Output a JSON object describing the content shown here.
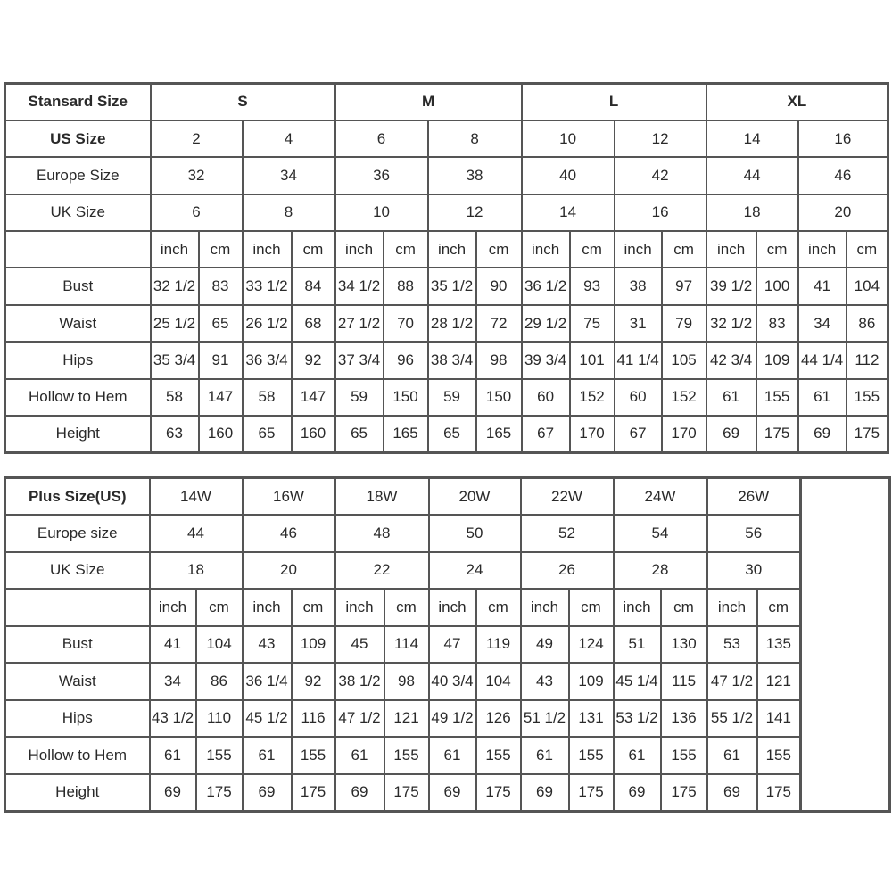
{
  "standard": {
    "header_label": "Stansard Size",
    "groups": [
      "S",
      "M",
      "L",
      "XL"
    ],
    "us_label": "US Size",
    "us_sizes": [
      "2",
      "4",
      "6",
      "8",
      "10",
      "12",
      "14",
      "16"
    ],
    "europe_label": "Europe Size",
    "europe_sizes": [
      "32",
      "34",
      "36",
      "38",
      "40",
      "42",
      "44",
      "46"
    ],
    "uk_label": "UK Size",
    "uk_sizes": [
      "6",
      "8",
      "10",
      "12",
      "14",
      "16",
      "18",
      "20"
    ],
    "unit_inch": "inch",
    "unit_cm": "cm",
    "measurements": [
      {
        "label": "Bust",
        "values": [
          "32 1/2",
          "83",
          "33 1/2",
          "84",
          "34 1/2",
          "88",
          "35 1/2",
          "90",
          "36 1/2",
          "93",
          "38",
          "97",
          "39 1/2",
          "100",
          "41",
          "104"
        ]
      },
      {
        "label": "Waist",
        "values": [
          "25 1/2",
          "65",
          "26 1/2",
          "68",
          "27 1/2",
          "70",
          "28 1/2",
          "72",
          "29 1/2",
          "75",
          "31",
          "79",
          "32 1/2",
          "83",
          "34",
          "86"
        ]
      },
      {
        "label": "Hips",
        "values": [
          "35 3/4",
          "91",
          "36 3/4",
          "92",
          "37 3/4",
          "96",
          "38 3/4",
          "98",
          "39 3/4",
          "101",
          "41 1/4",
          "105",
          "42 3/4",
          "109",
          "44 1/4",
          "112"
        ]
      },
      {
        "label": "Hollow to Hem",
        "values": [
          "58",
          "147",
          "58",
          "147",
          "59",
          "150",
          "59",
          "150",
          "60",
          "152",
          "60",
          "152",
          "61",
          "155",
          "61",
          "155"
        ]
      },
      {
        "label": "Height",
        "values": [
          "63",
          "160",
          "65",
          "160",
          "65",
          "165",
          "65",
          "165",
          "67",
          "170",
          "67",
          "170",
          "69",
          "175",
          "69",
          "175"
        ]
      }
    ]
  },
  "plus": {
    "header_label": "Plus Size(US)",
    "sizes": [
      "14W",
      "16W",
      "18W",
      "20W",
      "22W",
      "24W",
      "26W"
    ],
    "europe_label": "Europe size",
    "europe_sizes": [
      "44",
      "46",
      "48",
      "50",
      "52",
      "54",
      "56"
    ],
    "uk_label": "UK Size",
    "uk_sizes": [
      "18",
      "20",
      "22",
      "24",
      "26",
      "28",
      "30"
    ],
    "unit_inch": "inch",
    "unit_cm": "cm",
    "measurements": [
      {
        "label": "Bust",
        "values": [
          "41",
          "104",
          "43",
          "109",
          "45",
          "114",
          "47",
          "119",
          "49",
          "124",
          "51",
          "130",
          "53",
          "135"
        ]
      },
      {
        "label": "Waist",
        "values": [
          "34",
          "86",
          "36 1/4",
          "92",
          "38 1/2",
          "98",
          "40 3/4",
          "104",
          "43",
          "109",
          "45 1/4",
          "115",
          "47 1/2",
          "121"
        ]
      },
      {
        "label": "Hips",
        "values": [
          "43 1/2",
          "110",
          "45 1/2",
          "116",
          "47 1/2",
          "121",
          "49 1/2",
          "126",
          "51 1/2",
          "131",
          "53 1/2",
          "136",
          "55 1/2",
          "141"
        ]
      },
      {
        "label": "Hollow to Hem",
        "values": [
          "61",
          "155",
          "61",
          "155",
          "61",
          "155",
          "61",
          "155",
          "61",
          "155",
          "61",
          "155",
          "61",
          "155"
        ]
      },
      {
        "label": "Height",
        "values": [
          "69",
          "175",
          "69",
          "175",
          "69",
          "175",
          "69",
          "175",
          "69",
          "175",
          "69",
          "175",
          "69",
          "175"
        ]
      }
    ]
  }
}
